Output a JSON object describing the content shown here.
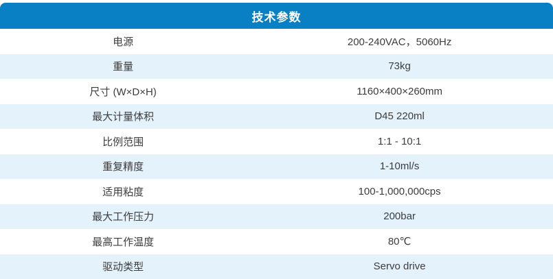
{
  "header": {
    "title": "技术参数"
  },
  "colors": {
    "header_bg": "#0a80c4",
    "header_text": "#ffffff",
    "row_bg": "#ffffff",
    "row_alt_bg": "#e4f2fc",
    "text": "#3c3c3c"
  },
  "table": {
    "rows": [
      {
        "label": "电源",
        "value": "200-240VAC，5060Hz"
      },
      {
        "label": "重量",
        "value": "73kg"
      },
      {
        "label": "尺寸 (W×D×H)",
        "value": "1160×400×260mm"
      },
      {
        "label": "最大计量体积",
        "value": "D45 220ml"
      },
      {
        "label": "比例范围",
        "value": "1:1 - 10:1"
      },
      {
        "label": "重复精度",
        "value": "1-10ml/s"
      },
      {
        "label": "适用粘度",
        "value": "100-1,000,000cps"
      },
      {
        "label": "最大工作压力",
        "value": "200bar"
      },
      {
        "label": "最高工作温度",
        "value": "80℃"
      },
      {
        "label": "驱动类型",
        "value": "Servo drive"
      }
    ]
  }
}
